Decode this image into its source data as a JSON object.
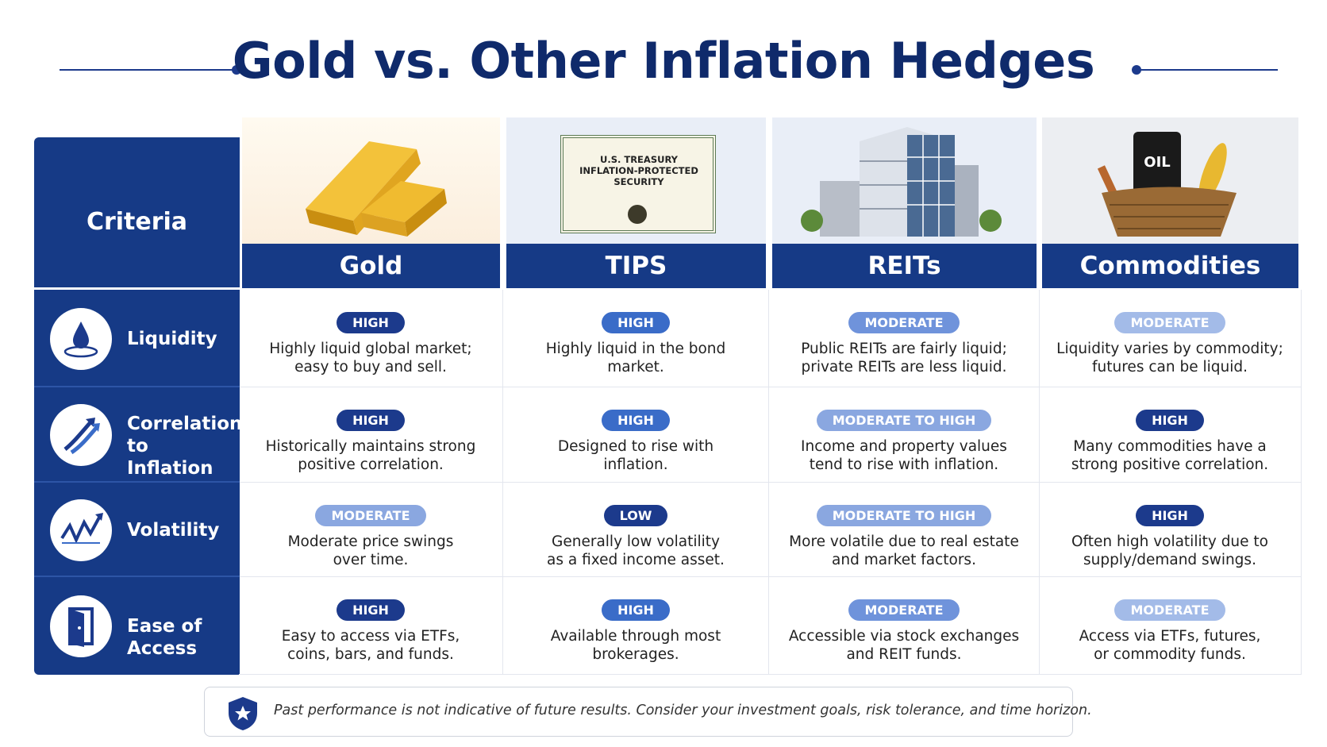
{
  "title": "Gold vs. Other Inflation Hedges",
  "table": {
    "corner": "Criteria",
    "columns": [
      {
        "name": "Gold"
      },
      {
        "name": "TIPS",
        "image_text": [
          "U.S. TREASURY",
          "INFLATION-PROTECTED",
          "SECURITY"
        ]
      },
      {
        "name": "REITs"
      },
      {
        "name": "Commodities",
        "image_text": [
          "OIL"
        ]
      }
    ],
    "rows": [
      {
        "criterion": [
          "Liquidity"
        ],
        "cells": [
          {
            "rating": "HIGH",
            "color": "#1c3a8c",
            "lines": [
              "Highly liquid global market;",
              "easy to buy and sell."
            ]
          },
          {
            "rating": "HIGH",
            "color": "#3a6cc8",
            "lines": [
              "Highly liquid in the bond",
              "market."
            ]
          },
          {
            "rating": "MODERATE",
            "color": "#6f93db",
            "lines": [
              "Public REITs are fairly liquid;",
              "private REITs are less liquid."
            ]
          },
          {
            "rating": "MODERATE",
            "color": "#a3bbe8",
            "lines": [
              "Liquidity varies by commodity;",
              "futures can be liquid."
            ]
          }
        ]
      },
      {
        "criterion": [
          "Correlation",
          "to Inflation"
        ],
        "cells": [
          {
            "rating": "HIGH",
            "color": "#1c3a8c",
            "lines": [
              "Historically maintains strong",
              "positive correlation."
            ]
          },
          {
            "rating": "HIGH",
            "color": "#3a6cc8",
            "lines": [
              "Designed to rise with",
              "inflation."
            ]
          },
          {
            "rating": "MODERATE TO HIGH",
            "color": "#8aa7e0",
            "lines": [
              "Income and property values",
              "tend to rise with inflation."
            ]
          },
          {
            "rating": "HIGH",
            "color": "#1c3a8c",
            "lines": [
              "Many commodities have a",
              "strong positive correlation."
            ]
          }
        ]
      },
      {
        "criterion": [
          "Volatility"
        ],
        "cells": [
          {
            "rating": "MODERATE",
            "color": "#8aa7e0",
            "lines": [
              "Moderate price swings",
              "over time."
            ]
          },
          {
            "rating": "LOW",
            "color": "#1c3a8c",
            "lines": [
              "Generally low volatility",
              "as a fixed income asset."
            ]
          },
          {
            "rating": "MODERATE TO HIGH",
            "color": "#8aa7e0",
            "lines": [
              "More volatile due to real estate",
              "and market factors."
            ]
          },
          {
            "rating": "HIGH",
            "color": "#1c3a8c",
            "lines": [
              "Often high volatility due to",
              "supply/demand swings."
            ]
          }
        ]
      },
      {
        "criterion": [
          "Ease of Access"
        ],
        "cells": [
          {
            "rating": "HIGH",
            "color": "#1c3a8c",
            "lines": [
              "Easy to access via ETFs,",
              "coins, bars, and funds."
            ]
          },
          {
            "rating": "HIGH",
            "color": "#3a6cc8",
            "lines": [
              "Available through most",
              "brokerages."
            ]
          },
          {
            "rating": "MODERATE",
            "color": "#6f93db",
            "lines": [
              "Accessible via stock exchanges",
              "and REIT funds."
            ]
          },
          {
            "rating": "MODERATE",
            "color": "#a3bbe8",
            "lines": [
              "Access via ETFs, futures,",
              "or commodity funds."
            ]
          }
        ]
      }
    ]
  },
  "footer": "Past performance is not indicative of future results. Consider your investment goals, risk tolerance, and time horizon."
}
